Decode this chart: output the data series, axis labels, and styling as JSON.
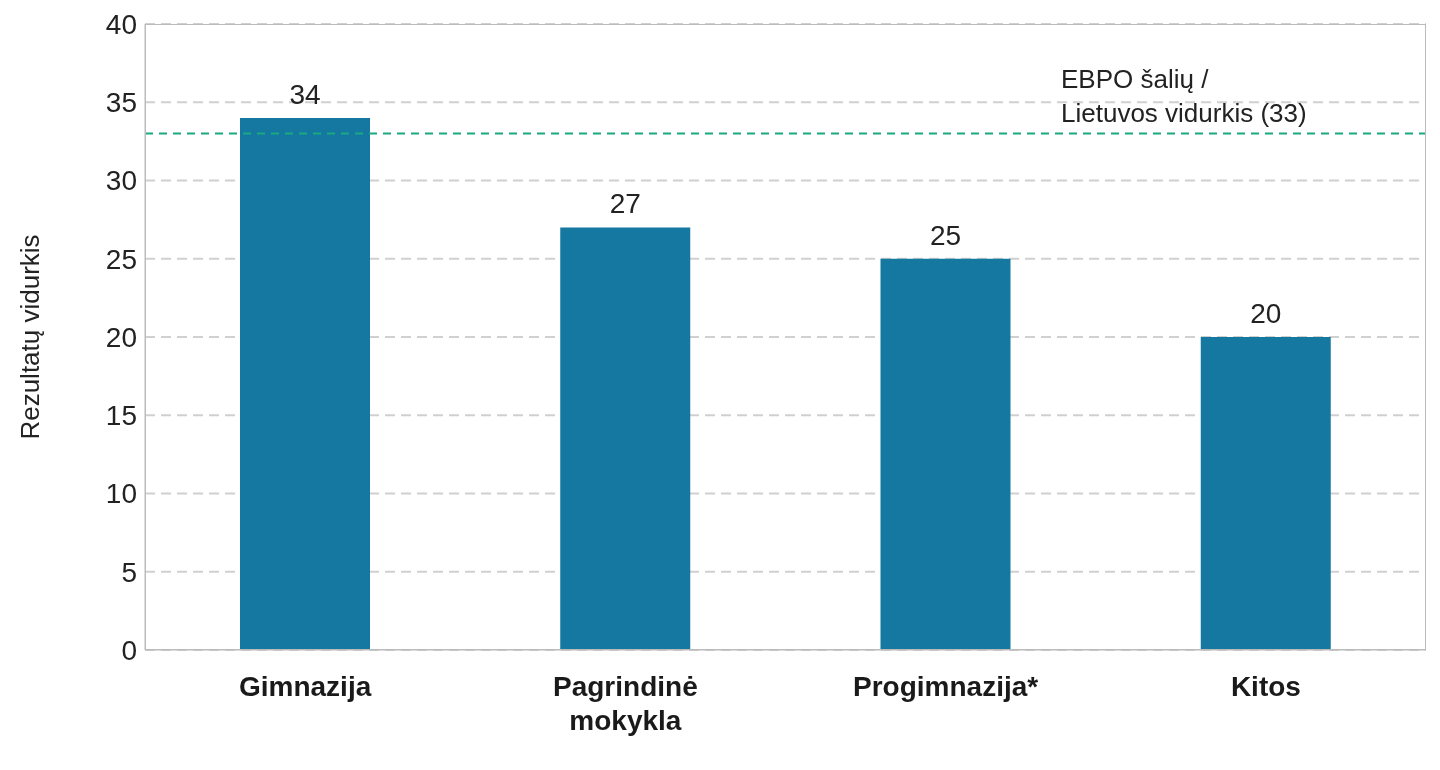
{
  "chart_data": {
    "type": "bar",
    "ylabel": "Rezultatų vidurkis",
    "categories": [
      "Gimnazija",
      "Pagrindinė mokykla",
      "Progimnazija*",
      "Kitos"
    ],
    "values": [
      34,
      27,
      25,
      20
    ],
    "color": "#1478a0",
    "data_labels": true,
    "ylim": [
      0,
      40
    ],
    "yticks": [
      0,
      5,
      10,
      15,
      20,
      25,
      30,
      35,
      40
    ],
    "grid": "y",
    "ref_lines": [
      {
        "axis": "y",
        "value": 33,
        "label": "EBPO šalių /\nLietuvos vidurkis (33)",
        "color": "#1aaa80",
        "line_style": "dashed"
      }
    ]
  }
}
